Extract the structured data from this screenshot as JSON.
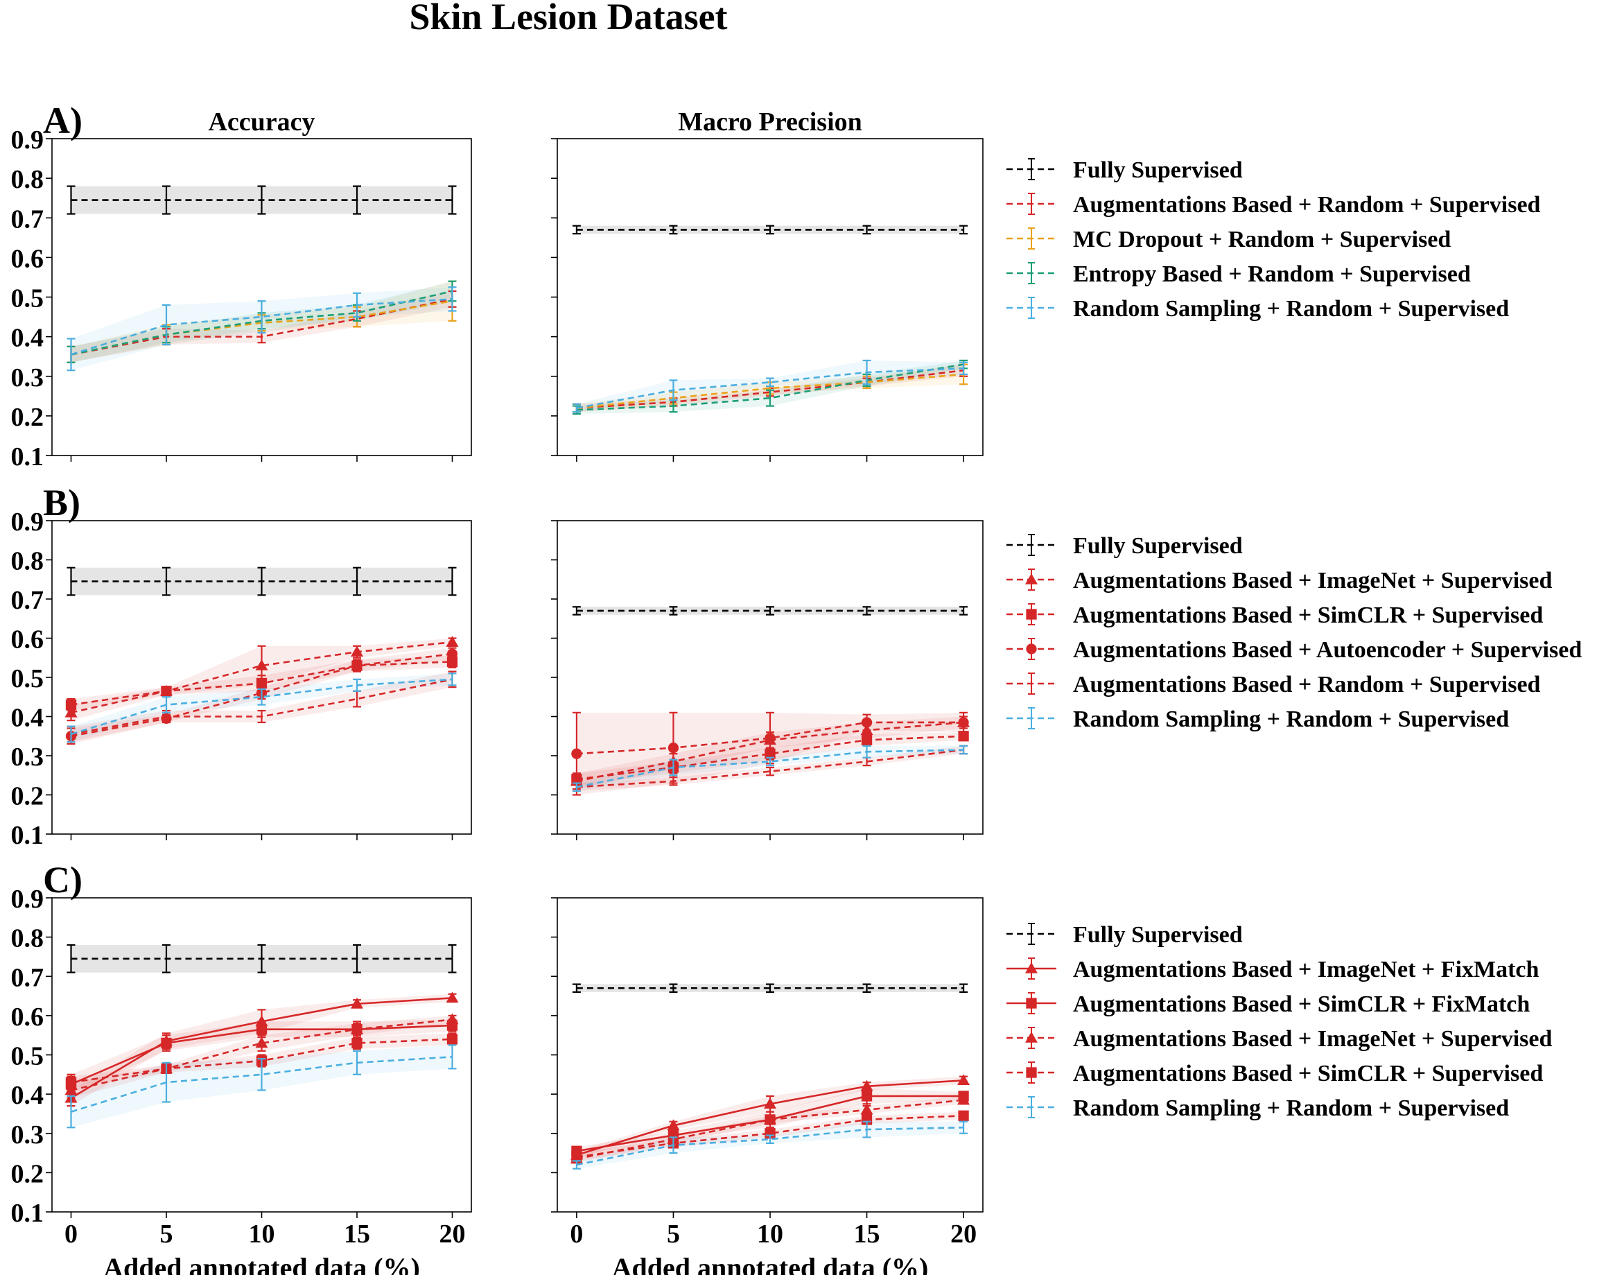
{
  "title": "Skin Lesion Dataset",
  "col_titles": [
    "Accuracy",
    "Macro Precision"
  ],
  "xlabel": "Added annotated data (%)",
  "xticks": [
    "0",
    "5",
    "10",
    "15",
    "20"
  ],
  "yticks": [
    "0.1",
    "0.2",
    "0.3",
    "0.4",
    "0.5",
    "0.6",
    "0.7",
    "0.8",
    "0.9"
  ],
  "colors": {
    "fully_supervised": "#000000",
    "augmentations": "#d62728",
    "mc_dropout": "#e8a21a",
    "entropy": "#1b9e77",
    "random_sampling": "#4aaee0"
  },
  "legends": [
    [
      {
        "label": "Fully Supervised",
        "color": "#000000",
        "style": "dashed",
        "marker": "none"
      },
      {
        "label": "Augmentations Based +  Random + Supervised",
        "color": "#d62728",
        "style": "dashed",
        "marker": "none"
      },
      {
        "label": "MC Dropout +  Random + Supervised",
        "color": "#e8a21a",
        "style": "dashed",
        "marker": "none"
      },
      {
        "label": "Entropy Based +  Random + Supervised",
        "color": "#1b9e77",
        "style": "dashed",
        "marker": "none"
      },
      {
        "label": "Random Sampling +  Random + Supervised",
        "color": "#4aaee0",
        "style": "dashed",
        "marker": "none"
      }
    ],
    [
      {
        "label": "Fully Supervised",
        "color": "#000000",
        "style": "dashed",
        "marker": "none"
      },
      {
        "label": "Augmentations Based + ImageNet + Supervised",
        "color": "#d62728",
        "style": "dashed",
        "marker": "triangle"
      },
      {
        "label": "Augmentations Based + SimCLR + Supervised",
        "color": "#d62728",
        "style": "dashed",
        "marker": "square"
      },
      {
        "label": "Augmentations Based + Autoencoder + Supervised",
        "color": "#d62728",
        "style": "dashed",
        "marker": "circle"
      },
      {
        "label": "Augmentations Based +  Random + Supervised",
        "color": "#d62728",
        "style": "dashed",
        "marker": "none"
      },
      {
        "label": "Random Sampling +  Random + Supervised",
        "color": "#4aaee0",
        "style": "dashed",
        "marker": "none"
      }
    ],
    [
      {
        "label": "Fully Supervised",
        "color": "#000000",
        "style": "dashed",
        "marker": "none"
      },
      {
        "label": "Augmentations Based + ImageNet + FixMatch",
        "color": "#d62728",
        "style": "solid",
        "marker": "triangle"
      },
      {
        "label": "Augmentations Based + SimCLR + FixMatch",
        "color": "#d62728",
        "style": "solid",
        "marker": "square"
      },
      {
        "label": "Augmentations Based + ImageNet + Supervised",
        "color": "#d62728",
        "style": "dashed",
        "marker": "triangle"
      },
      {
        "label": "Augmentations Based + SimCLR + Supervised",
        "color": "#d62728",
        "style": "dashed",
        "marker": "square"
      },
      {
        "label": "Random Sampling +  Random + Supervised",
        "color": "#4aaee0",
        "style": "dashed",
        "marker": "none"
      }
    ]
  ],
  "chart_data": [
    {
      "type": "line",
      "row_label": "A)",
      "title": "Accuracy",
      "xlabel": "",
      "x": [
        0,
        5,
        10,
        15,
        20
      ],
      "xlim": [
        -1,
        21
      ],
      "ylim": [
        0.1,
        0.9
      ],
      "series": [
        {
          "name": "Fully Supervised",
          "color": "#000000",
          "style": "dashed",
          "marker": "none",
          "values": [
            0.745,
            0.745,
            0.745,
            0.745,
            0.745
          ],
          "err": [
            0.035,
            0.035,
            0.035,
            0.035,
            0.035
          ]
        },
        {
          "name": "Augmentations Based +  Random + Supervised",
          "color": "#d62728",
          "style": "dashed",
          "marker": "none",
          "values": [
            0.355,
            0.4,
            0.4,
            0.445,
            0.495
          ],
          "err": [
            0.02,
            0.02,
            0.015,
            0.02,
            0.02
          ]
        },
        {
          "name": "MC Dropout +  Random + Supervised",
          "color": "#e8a21a",
          "style": "dashed",
          "marker": "none",
          "values": [
            0.355,
            0.405,
            0.435,
            0.45,
            0.49
          ],
          "err": [
            0.02,
            0.025,
            0.02,
            0.025,
            0.05
          ]
        },
        {
          "name": "Entropy Based +  Random + Supervised",
          "color": "#1b9e77",
          "style": "dashed",
          "marker": "none",
          "values": [
            0.355,
            0.405,
            0.44,
            0.46,
            0.515
          ],
          "err": [
            0.02,
            0.02,
            0.02,
            0.02,
            0.025
          ]
        },
        {
          "name": "Random Sampling +  Random + Supervised",
          "color": "#4aaee0",
          "style": "dashed",
          "marker": "none",
          "values": [
            0.355,
            0.43,
            0.45,
            0.48,
            0.495
          ],
          "err": [
            0.04,
            0.05,
            0.04,
            0.03,
            0.03
          ]
        }
      ]
    },
    {
      "type": "line",
      "row_label": "",
      "title": "Macro Precision",
      "xlabel": "",
      "x": [
        0,
        5,
        10,
        15,
        20
      ],
      "xlim": [
        -1,
        21
      ],
      "ylim": [
        0.1,
        0.9
      ],
      "series": [
        {
          "name": "Fully Supervised",
          "color": "#000000",
          "style": "dashed",
          "marker": "none",
          "values": [
            0.67,
            0.67,
            0.67,
            0.67,
            0.67
          ],
          "err": [
            0.01,
            0.01,
            0.01,
            0.01,
            0.01
          ]
        },
        {
          "name": "Augmentations Based +  Random + Supervised",
          "color": "#d62728",
          "style": "dashed",
          "marker": "none",
          "values": [
            0.22,
            0.235,
            0.26,
            0.285,
            0.315
          ],
          "err": [
            0.01,
            0.01,
            0.01,
            0.01,
            0.015
          ]
        },
        {
          "name": "MC Dropout +  Random + Supervised",
          "color": "#e8a21a",
          "style": "dashed",
          "marker": "none",
          "values": [
            0.22,
            0.245,
            0.27,
            0.285,
            0.305
          ],
          "err": [
            0.01,
            0.015,
            0.015,
            0.015,
            0.025
          ]
        },
        {
          "name": "Entropy Based +  Random + Supervised",
          "color": "#1b9e77",
          "style": "dashed",
          "marker": "none",
          "values": [
            0.215,
            0.225,
            0.245,
            0.29,
            0.33
          ],
          "err": [
            0.01,
            0.015,
            0.02,
            0.015,
            0.01
          ]
        },
        {
          "name": "Random Sampling +  Random + Supervised",
          "color": "#4aaee0",
          "style": "dashed",
          "marker": "none",
          "values": [
            0.22,
            0.265,
            0.285,
            0.31,
            0.32
          ],
          "err": [
            0.01,
            0.025,
            0.01,
            0.03,
            0.015
          ]
        }
      ]
    },
    {
      "type": "line",
      "row_label": "B)",
      "title": "",
      "xlabel": "",
      "x": [
        0,
        5,
        10,
        15,
        20
      ],
      "xlim": [
        -1,
        21
      ],
      "ylim": [
        0.1,
        0.9
      ],
      "series": [
        {
          "name": "Fully Supervised",
          "color": "#000000",
          "style": "dashed",
          "marker": "none",
          "values": [
            0.745,
            0.745,
            0.745,
            0.745,
            0.745
          ],
          "err": [
            0.035,
            0.035,
            0.035,
            0.035,
            0.035
          ]
        },
        {
          "name": "Augmentations Based + ImageNet + Supervised",
          "color": "#d62728",
          "style": "dashed",
          "marker": "triangle",
          "values": [
            0.41,
            0.465,
            0.53,
            0.565,
            0.59
          ],
          "err": [
            0.02,
            0.01,
            0.05,
            0.015,
            0.01
          ]
        },
        {
          "name": "Augmentations Based + SimCLR + Supervised",
          "color": "#d62728",
          "style": "dashed",
          "marker": "square",
          "values": [
            0.43,
            0.465,
            0.485,
            0.53,
            0.54
          ],
          "err": [
            0.015,
            0.01,
            0.02,
            0.015,
            0.015
          ]
        },
        {
          "name": "Augmentations Based + Autoencoder + Supervised",
          "color": "#d62728",
          "style": "dashed",
          "marker": "circle",
          "values": [
            0.35,
            0.395,
            0.46,
            0.53,
            0.56
          ],
          "err": [
            0.02,
            0.01,
            0.015,
            0.015,
            0.015
          ]
        },
        {
          "name": "Augmentations Based +  Random + Supervised",
          "color": "#d62728",
          "style": "dashed",
          "marker": "none",
          "values": [
            0.355,
            0.4,
            0.4,
            0.445,
            0.495
          ],
          "err": [
            0.02,
            0.015,
            0.015,
            0.02,
            0.02
          ]
        },
        {
          "name": "Random Sampling +  Random + Supervised",
          "color": "#4aaee0",
          "style": "dashed",
          "marker": "none",
          "values": [
            0.355,
            0.43,
            0.45,
            0.48,
            0.495
          ],
          "err": [
            0.02,
            0.02,
            0.02,
            0.015,
            0.015
          ]
        }
      ]
    },
    {
      "type": "line",
      "row_label": "",
      "title": "",
      "xlabel": "",
      "x": [
        0,
        5,
        10,
        15,
        20
      ],
      "xlim": [
        -1,
        21
      ],
      "ylim": [
        0.1,
        0.9
      ],
      "series": [
        {
          "name": "Fully Supervised",
          "color": "#000000",
          "style": "dashed",
          "marker": "none",
          "values": [
            0.67,
            0.67,
            0.67,
            0.67,
            0.67
          ],
          "err": [
            0.01,
            0.01,
            0.01,
            0.01,
            0.01
          ]
        },
        {
          "name": "Augmentations Based + ImageNet + Supervised",
          "color": "#d62728",
          "style": "dashed",
          "marker": "triangle",
          "values": [
            0.235,
            0.285,
            0.34,
            0.365,
            0.385
          ],
          "err": [
            0.02,
            0.02,
            0.02,
            0.02,
            0.015
          ]
        },
        {
          "name": "Augmentations Based + SimCLR + Supervised",
          "color": "#d62728",
          "style": "dashed",
          "marker": "square",
          "values": [
            0.24,
            0.27,
            0.305,
            0.34,
            0.35
          ],
          "err": [
            0.015,
            0.015,
            0.015,
            0.015,
            0.01
          ]
        },
        {
          "name": "Augmentations Based + Autoencoder + Supervised",
          "color": "#d62728",
          "style": "dashed",
          "marker": "circle",
          "values": [
            0.305,
            0.32,
            0.345,
            0.385,
            0.385
          ],
          "err": [
            0.105,
            0.09,
            0.065,
            0.02,
            0.025
          ]
        },
        {
          "name": "Augmentations Based +  Random + Supervised",
          "color": "#d62728",
          "style": "dashed",
          "marker": "none",
          "values": [
            0.22,
            0.235,
            0.26,
            0.285,
            0.315
          ],
          "err": [
            0.01,
            0.01,
            0.01,
            0.01,
            0.01
          ]
        },
        {
          "name": "Random Sampling +  Random + Supervised",
          "color": "#4aaee0",
          "style": "dashed",
          "marker": "none",
          "values": [
            0.22,
            0.27,
            0.285,
            0.31,
            0.315
          ],
          "err": [
            0.01,
            0.02,
            0.01,
            0.015,
            0.01
          ]
        }
      ]
    },
    {
      "type": "line",
      "row_label": "C)",
      "title": "",
      "xlabel": "Added annotated data (%)",
      "x": [
        0,
        5,
        10,
        15,
        20
      ],
      "xlim": [
        -1,
        21
      ],
      "ylim": [
        0.1,
        0.9
      ],
      "series": [
        {
          "name": "Fully Supervised",
          "color": "#000000",
          "style": "dashed",
          "marker": "none",
          "values": [
            0.745,
            0.745,
            0.745,
            0.745,
            0.745
          ],
          "err": [
            0.035,
            0.035,
            0.035,
            0.035,
            0.035
          ]
        },
        {
          "name": "Augmentations Based + ImageNet + FixMatch",
          "color": "#d62728",
          "style": "solid",
          "marker": "triangle",
          "values": [
            0.39,
            0.535,
            0.585,
            0.63,
            0.645
          ],
          "err": [
            0.02,
            0.02,
            0.03,
            0.01,
            0.01
          ]
        },
        {
          "name": "Augmentations Based + SimCLR + FixMatch",
          "color": "#d62728",
          "style": "solid",
          "marker": "square",
          "values": [
            0.425,
            0.53,
            0.565,
            0.565,
            0.575
          ],
          "err": [
            0.025,
            0.02,
            0.02,
            0.02,
            0.015
          ]
        },
        {
          "name": "Augmentations Based + ImageNet + Supervised",
          "color": "#d62728",
          "style": "dashed",
          "marker": "triangle",
          "values": [
            0.41,
            0.465,
            0.53,
            0.565,
            0.59
          ],
          "err": [
            0.02,
            0.01,
            0.02,
            0.015,
            0.01
          ]
        },
        {
          "name": "Augmentations Based + SimCLR + Supervised",
          "color": "#d62728",
          "style": "dashed",
          "marker": "square",
          "values": [
            0.43,
            0.465,
            0.485,
            0.53,
            0.54
          ],
          "err": [
            0.015,
            0.01,
            0.015,
            0.015,
            0.015
          ]
        },
        {
          "name": "Random Sampling +  Random + Supervised",
          "color": "#4aaee0",
          "style": "dashed",
          "marker": "none",
          "values": [
            0.355,
            0.43,
            0.45,
            0.48,
            0.495
          ],
          "err": [
            0.04,
            0.05,
            0.04,
            0.03,
            0.03
          ]
        }
      ]
    },
    {
      "type": "line",
      "row_label": "",
      "title": "",
      "xlabel": "Added annotated data (%)",
      "x": [
        0,
        5,
        10,
        15,
        20
      ],
      "xlim": [
        -1,
        21
      ],
      "ylim": [
        0.1,
        0.9
      ],
      "series": [
        {
          "name": "Fully Supervised",
          "color": "#000000",
          "style": "dashed",
          "marker": "none",
          "values": [
            0.67,
            0.67,
            0.67,
            0.67,
            0.67
          ],
          "err": [
            0.01,
            0.01,
            0.01,
            0.01,
            0.01
          ]
        },
        {
          "name": "Augmentations Based + ImageNet + FixMatch",
          "color": "#d62728",
          "style": "solid",
          "marker": "triangle",
          "values": [
            0.245,
            0.32,
            0.375,
            0.42,
            0.435
          ],
          "err": [
            0.01,
            0.01,
            0.02,
            0.01,
            0.01
          ]
        },
        {
          "name": "Augmentations Based + SimCLR + FixMatch",
          "color": "#d62728",
          "style": "solid",
          "marker": "square",
          "values": [
            0.255,
            0.295,
            0.335,
            0.395,
            0.395
          ],
          "err": [
            0.01,
            0.01,
            0.02,
            0.02,
            0.01
          ]
        },
        {
          "name": "Augmentations Based + ImageNet + Supervised",
          "color": "#d62728",
          "style": "dashed",
          "marker": "triangle",
          "values": [
            0.235,
            0.285,
            0.335,
            0.36,
            0.385
          ],
          "err": [
            0.01,
            0.01,
            0.01,
            0.01,
            0.01
          ]
        },
        {
          "name": "Augmentations Based + SimCLR + Supervised",
          "color": "#d62728",
          "style": "dashed",
          "marker": "square",
          "values": [
            0.24,
            0.275,
            0.3,
            0.335,
            0.345
          ],
          "err": [
            0.01,
            0.01,
            0.01,
            0.01,
            0.01
          ]
        },
        {
          "name": "Random Sampling +  Random + Supervised",
          "color": "#4aaee0",
          "style": "dashed",
          "marker": "none",
          "values": [
            0.22,
            0.27,
            0.285,
            0.31,
            0.315
          ],
          "err": [
            0.01,
            0.02,
            0.01,
            0.02,
            0.015
          ]
        }
      ]
    }
  ]
}
